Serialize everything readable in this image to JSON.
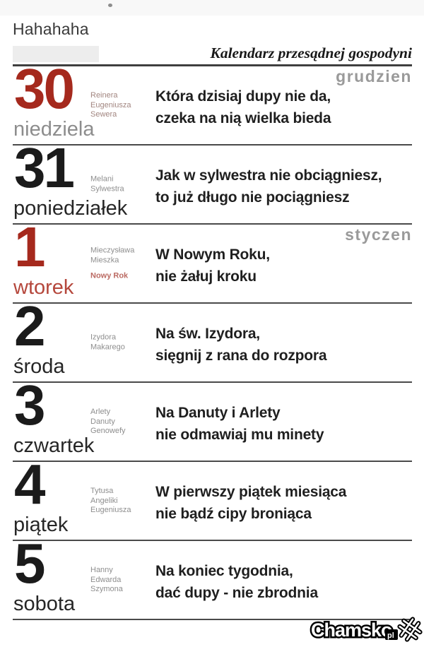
{
  "page": {
    "top_note": "Hahahaha"
  },
  "header": {
    "title": "Kalendarz przesądnej gospodyni"
  },
  "calendar": {
    "rows": [
      {
        "number": "30",
        "accent": "red",
        "day": "niedziela",
        "day_color": "gray",
        "names": [
          "Reinera",
          "Eugeniusza",
          "Sewera"
        ],
        "names_tone": "red",
        "month": "grudzien",
        "proverb": [
          "Która dzisiaj dupy nie da,",
          "czeka na nią wielka bieda"
        ]
      },
      {
        "number": "31",
        "day": "poniedziałek",
        "names": [
          "Melani",
          "Sylwestra"
        ],
        "proverb": [
          "Jak w sylwestra nie obciągniesz,",
          "to już długo nie pociągniesz"
        ]
      },
      {
        "number": "1",
        "accent": "red",
        "day": "wtorek",
        "day_color": "red",
        "names": [
          "Mieczysława",
          "Mieszka"
        ],
        "holiday": "Nowy Rok",
        "month": "styczen",
        "proverb": [
          "W Nowym Roku,",
          "nie żałuj kroku"
        ]
      },
      {
        "number": "2",
        "day": "środa",
        "names": [
          "Izydora",
          "Makarego"
        ],
        "proverb": [
          "Na św. Izydora,",
          "sięgnij z rana do rozpora"
        ]
      },
      {
        "number": "3",
        "day": "czwartek",
        "names": [
          "Arlety",
          "Danuty",
          "Genowefy"
        ],
        "proverb": [
          "Na Danuty i Arlety",
          "nie odmawiaj mu minety"
        ]
      },
      {
        "number": "4",
        "day": "piątek",
        "names": [
          "Tytusa",
          "Angeliki",
          "Eugeniusza"
        ],
        "proverb": [
          "W pierwszy piątek miesiąca",
          "nie bądź cipy broniąca"
        ]
      },
      {
        "number": "5",
        "day": "sobota",
        "names": [
          "Hanny",
          "Edwarda",
          "Szymona"
        ],
        "proverb": [
          "Na koniec tygodnia,",
          "dać dupy - nie zbrodnia"
        ]
      }
    ]
  },
  "watermark": {
    "site": "Chamsko",
    "tld": "pl",
    "icon": "crossed-pitchforks-icon"
  },
  "colors": {
    "accent_red": "#a5291d",
    "number_ink": "#1b1b1b",
    "day_red": "#b5473c",
    "day_ink": "#262626",
    "gray_text": "#8d8d8d",
    "names_gray": "#8e8e8e",
    "names_red": "#a28680",
    "holiday_red": "#bb6a62",
    "month_gray": "#9a9a9a",
    "ink": "#1f1f1f"
  }
}
